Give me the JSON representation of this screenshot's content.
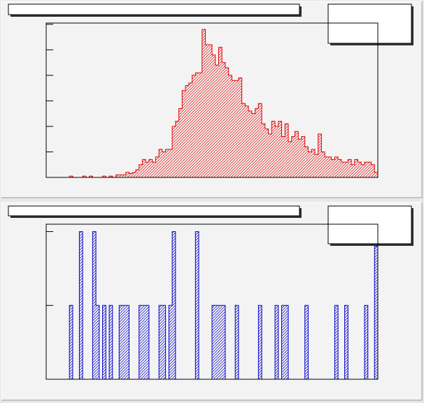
{
  "chart_data": [
    {
      "type": "histogram",
      "color": "#e00000",
      "bins": [
        0,
        1,
        2,
        3,
        4,
        5,
        6,
        7,
        8,
        9,
        10,
        11,
        12,
        13,
        14,
        15,
        16,
        17,
        18,
        19,
        20,
        21,
        22,
        23,
        24,
        25,
        26,
        27,
        28,
        29,
        30,
        31,
        32,
        33,
        34,
        35,
        36,
        37,
        38,
        39,
        40,
        41,
        42,
        43,
        44,
        45,
        46,
        47,
        48,
        49,
        50,
        51,
        52,
        53,
        54,
        55,
        56,
        57,
        58,
        59,
        60,
        61,
        62,
        63,
        64,
        65,
        66,
        67,
        68,
        69,
        70,
        71,
        72,
        73,
        74,
        75,
        76,
        77,
        78,
        79,
        80,
        81,
        82,
        83,
        84,
        85,
        86,
        87,
        88,
        89,
        90,
        91,
        92,
        93,
        94,
        95,
        96,
        97,
        98,
        99,
        100
      ],
      "values": [
        0,
        0,
        0,
        0,
        0,
        0,
        0,
        0.5,
        0,
        0,
        0,
        0.5,
        0,
        0.5,
        0,
        0,
        0,
        0.5,
        0,
        0.5,
        0,
        1,
        1,
        1,
        2,
        1.5,
        2,
        3,
        5,
        7,
        6,
        7,
        6,
        8,
        11,
        10,
        11,
        11,
        20,
        22,
        27,
        34,
        36,
        37,
        40,
        41,
        41,
        58,
        52,
        52,
        48,
        44,
        51,
        45,
        43,
        40,
        38,
        38,
        39,
        29,
        28,
        26,
        25,
        27,
        29,
        21,
        19,
        17,
        22,
        20,
        22,
        16,
        21,
        14,
        16,
        18,
        15,
        16,
        12,
        10,
        11,
        9,
        17,
        10,
        8,
        8,
        7,
        8,
        7,
        6,
        6,
        7,
        5,
        7,
        6,
        5,
        6,
        6,
        5,
        2
      ],
      "xlim": [
        0,
        100
      ],
      "ylim": [
        0,
        60.5
      ],
      "yticks": [
        0,
        10,
        20,
        30,
        40,
        50,
        60
      ]
    },
    {
      "type": "histogram",
      "color": "#0000c8",
      "bins": [
        0,
        1,
        2,
        3,
        4,
        5,
        6,
        7,
        8,
        9,
        10,
        11,
        12,
        13,
        14,
        15,
        16,
        17,
        18,
        19,
        20,
        21,
        22,
        23,
        24,
        25,
        26,
        27,
        28,
        29,
        30,
        31,
        32,
        33,
        34,
        35,
        36,
        37,
        38,
        39,
        40,
        41,
        42,
        43,
        44,
        45,
        46,
        47,
        48,
        49,
        50,
        51,
        52,
        53,
        54,
        55,
        56,
        57,
        58,
        59,
        60,
        61,
        62,
        63,
        64,
        65,
        66,
        67,
        68,
        69,
        70,
        71,
        72,
        73,
        74,
        75,
        76,
        77,
        78,
        79,
        80,
        81,
        82,
        83,
        84,
        85,
        86,
        87,
        88,
        89,
        90,
        91,
        92,
        93,
        94,
        95,
        96,
        97,
        98,
        99,
        100
      ],
      "values": [
        0,
        0,
        0,
        0,
        0,
        0,
        0,
        1,
        0,
        0,
        2,
        0,
        0,
        0,
        2,
        1,
        0,
        1,
        0,
        1,
        0,
        0,
        1,
        1,
        1,
        0,
        0,
        0,
        1,
        1,
        1,
        0,
        0,
        0,
        1,
        1,
        0,
        1,
        2,
        0,
        0,
        0,
        0,
        0,
        0,
        2,
        0,
        0,
        0,
        0,
        1,
        1,
        1,
        1,
        0,
        0,
        0,
        1,
        0,
        0,
        0,
        0,
        0,
        0,
        1,
        0,
        0,
        0,
        0,
        1,
        0,
        1,
        1,
        0,
        0,
        0,
        0,
        0,
        1,
        0,
        0,
        0,
        0,
        0,
        0,
        0,
        0,
        1,
        0,
        0,
        1,
        0,
        0,
        0,
        0,
        0,
        1,
        0,
        0,
        1.8
      ],
      "xlim": [
        0,
        100
      ],
      "ylim": [
        0,
        2.1
      ],
      "yticks": [
        0,
        1,
        2
      ]
    }
  ]
}
